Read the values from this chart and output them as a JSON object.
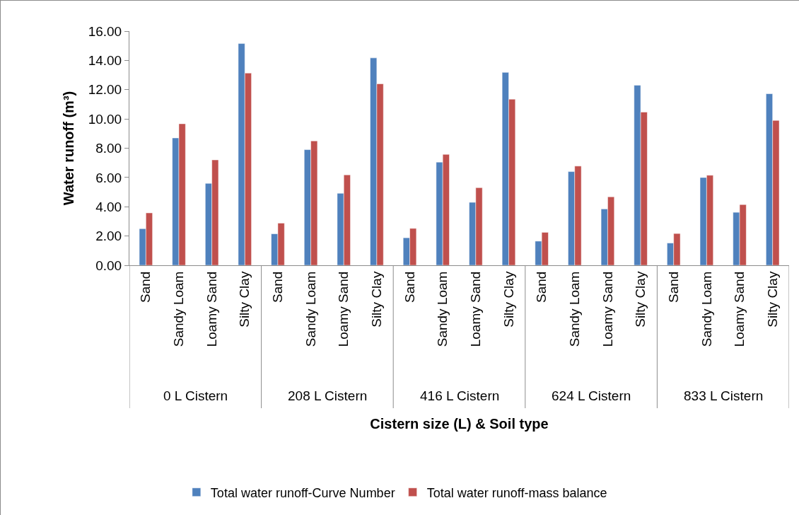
{
  "chart_data": {
    "type": "bar",
    "xlabel": "Cistern size (L) & Soil type",
    "ylabel": "Water runoff (m³)",
    "categories": [
      "Sand",
      "Sandy Loam",
      "Loamy Sand",
      "Silty Clay",
      "Sand",
      "Sandy Loam",
      "Loamy Sand",
      "Silty Clay",
      "Sand",
      "Sandy Loam",
      "Loamy Sand",
      "Silty Clay",
      "Sand",
      "Sandy Loam",
      "Loamy Sand",
      "Silty Clay",
      "Sand",
      "Sandy Loam",
      "Loamy Sand",
      "Silty Clay"
    ],
    "series": [
      {
        "name": "Total water runoff-Curve Number",
        "color": "#4f81bd",
        "values": [
          2.5,
          8.7,
          5.6,
          15.15,
          2.15,
          7.9,
          4.92,
          14.17,
          1.88,
          7.05,
          4.3,
          13.18,
          1.65,
          6.4,
          3.85,
          12.3,
          1.52,
          6.0,
          3.62,
          11.72
        ]
      },
      {
        "name": "Total water runoff-mass balance",
        "color": "#c0504d",
        "values": [
          3.58,
          9.67,
          7.2,
          13.13,
          2.88,
          8.5,
          6.18,
          12.4,
          2.52,
          7.58,
          5.3,
          11.35,
          2.25,
          6.78,
          4.68,
          10.47,
          2.17,
          6.15,
          4.15,
          9.9
        ]
      }
    ],
    "annotations": [
      "0 L Cistern",
      "208 L Cistern",
      "416 L Cistern",
      "624 L Cistern",
      "833 L Cistern"
    ],
    "ylim": [
      0,
      16
    ],
    "yticks": [
      {
        "value": 0,
        "label": "0.00"
      },
      {
        "value": 2,
        "label": "2.00"
      },
      {
        "value": 4,
        "label": "4.00"
      },
      {
        "value": 6,
        "label": "6.00"
      },
      {
        "value": 8,
        "label": "8.00"
      },
      {
        "value": 10,
        "label": "10.00"
      },
      {
        "value": 12,
        "label": "12.00"
      },
      {
        "value": 14,
        "label": "14.00"
      },
      {
        "value": 16,
        "label": "16.00"
      }
    ],
    "grid": false,
    "legend": "bottom"
  }
}
